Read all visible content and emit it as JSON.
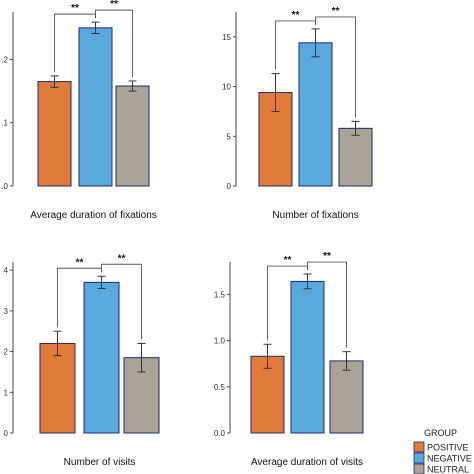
{
  "chart_data": [
    {
      "type": "bar",
      "title": "Average duration of fixations",
      "categories": [
        "POSITIVE",
        "NEGATIVE",
        "NEUTRAL"
      ],
      "values": [
        0.165,
        0.25,
        0.158
      ],
      "errors": [
        0.009,
        0.009,
        0.008
      ],
      "yticks": [
        0.0,
        0.1,
        0.2
      ],
      "ytick_labels": [
        ".0",
        ".1",
        ".2"
      ],
      "ylim": [
        0,
        0.275
      ],
      "significance": [
        {
          "pair": [
            0,
            1
          ],
          "label": "**"
        },
        {
          "pair": [
            1,
            2
          ],
          "label": "**"
        }
      ]
    },
    {
      "type": "bar",
      "title": "Number of fixations",
      "categories": [
        "POSITIVE",
        "NEGATIVE",
        "NEUTRAL"
      ],
      "values": [
        9.4,
        14.4,
        5.8
      ],
      "errors": [
        1.9,
        1.4,
        0.7
      ],
      "yticks": [
        0,
        5,
        10,
        15
      ],
      "ytick_labels": [
        "0",
        "5",
        "10",
        "15"
      ],
      "ylim": [
        0,
        17.5
      ],
      "significance": [
        {
          "pair": [
            0,
            1
          ],
          "label": "**"
        },
        {
          "pair": [
            1,
            2
          ],
          "label": "**"
        }
      ]
    },
    {
      "type": "bar",
      "title": "Number of visits",
      "categories": [
        "POSITIVE",
        "NEGATIVE",
        "NEUTRAL"
      ],
      "values": [
        2.2,
        3.7,
        1.85
      ],
      "errors": [
        0.3,
        0.15,
        0.35
      ],
      "yticks": [
        0,
        1,
        2,
        3,
        4
      ],
      "ytick_labels": [
        "0",
        "1",
        "2",
        "3",
        "4"
      ],
      "ylim": [
        0,
        4.2
      ],
      "significance": [
        {
          "pair": [
            0,
            1
          ],
          "label": "**"
        },
        {
          "pair": [
            1,
            2
          ],
          "label": "**"
        }
      ]
    },
    {
      "type": "bar",
      "title": "Average duration of visits",
      "categories": [
        "POSITIVE",
        "NEGATIVE",
        "NEUTRAL"
      ],
      "values": [
        0.83,
        1.64,
        0.78
      ],
      "errors": [
        0.13,
        0.08,
        0.1
      ],
      "yticks": [
        0.0,
        0.5,
        1.0,
        1.5
      ],
      "ytick_labels": [
        "0.0",
        "0.5",
        "1.0",
        "1.5"
      ],
      "ylim": [
        0,
        1.85
      ],
      "significance": [
        {
          "pair": [
            0,
            1
          ],
          "label": "**"
        },
        {
          "pair": [
            1,
            2
          ],
          "label": "**"
        }
      ]
    }
  ],
  "legend": {
    "title": "GROUP",
    "placement": "bottom-right",
    "items": [
      {
        "label": "POSITIVE",
        "color": "#e07b39"
      },
      {
        "label": "NEGATIVE",
        "color": "#5aa9dc"
      },
      {
        "label": "NEUTRAL",
        "color": "#aaa397"
      }
    ]
  },
  "colors": {
    "bar_outline": "#1f2a6b",
    "axis": "#444444",
    "error_bar": "#333333"
  }
}
